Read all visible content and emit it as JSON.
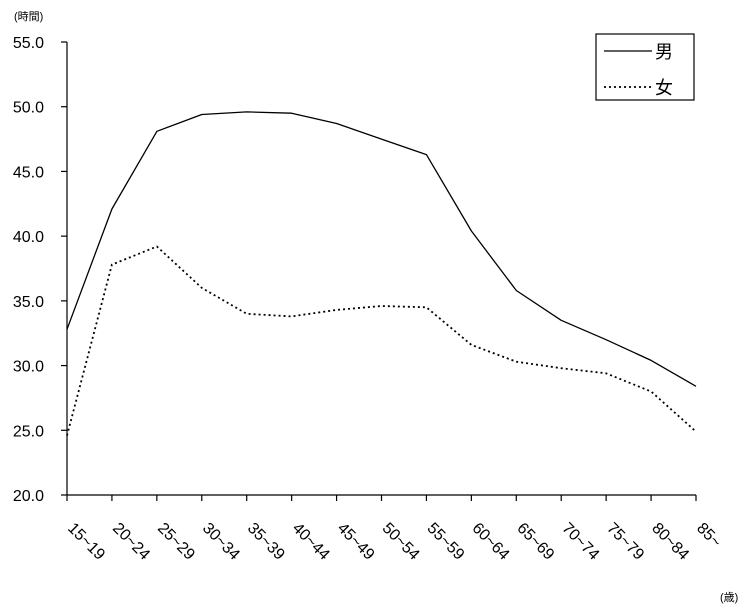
{
  "chart_data": {
    "type": "line",
    "title": "",
    "ylabel": "(時間)",
    "xlabel": "(歳)",
    "ylim": [
      20.0,
      55.0
    ],
    "yticks": [
      "20.0",
      "25.0",
      "30.0",
      "35.0",
      "40.0",
      "45.0",
      "50.0",
      "55.0"
    ],
    "categories": [
      "15~19",
      "20~24",
      "25~29",
      "30~34",
      "35~39",
      "40~44",
      "45~49",
      "50~54",
      "55~59",
      "60~64",
      "65~69",
      "70~74",
      "75~79",
      "80~84",
      "85~"
    ],
    "series": [
      {
        "name": "男",
        "style": "solid",
        "color": "#000000",
        "values": [
          32.8,
          42.1,
          48.1,
          49.4,
          49.6,
          49.5,
          48.7,
          47.5,
          46.3,
          40.4,
          35.8,
          33.5,
          32.0,
          30.4,
          28.4
        ]
      },
      {
        "name": "女",
        "style": "dotted",
        "color": "#000000",
        "values": [
          24.6,
          37.8,
          39.2,
          36.0,
          34.0,
          33.8,
          34.3,
          34.6,
          34.5,
          31.6,
          30.3,
          29.8,
          29.4,
          28.0,
          24.9
        ]
      }
    ],
    "legend": {
      "position": "top-right"
    },
    "grid": false
  }
}
